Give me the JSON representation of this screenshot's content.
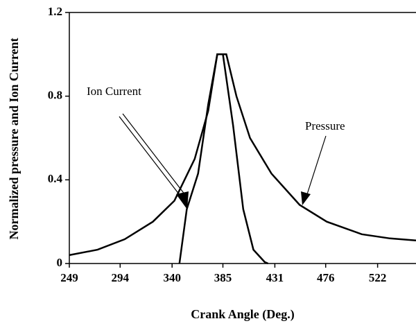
{
  "chart_data": {
    "type": "line",
    "x_label": "Crank Angle (Deg.)",
    "y_label": "Normalized pressure and Ion Current",
    "annotations": [
      "Ion Current",
      "Pressure"
    ],
    "xlim": [
      249,
      556
    ],
    "xticks": [
      249,
      294,
      340,
      385,
      431,
      476,
      522
    ],
    "ylim": [
      0,
      1.2
    ],
    "yticks": [
      0,
      0.4,
      0.8,
      1.2
    ],
    "series": [
      {
        "name": "Pressure",
        "color": "#000000",
        "x": [
          249,
          274,
          298,
          323,
          342,
          360,
          372,
          380,
          388,
          397,
          409,
          428,
          453,
          477,
          508,
          533,
          556
        ],
        "values": [
          0.04,
          0.066,
          0.116,
          0.2,
          0.3,
          0.5,
          0.73,
          1.0,
          1.0,
          0.8,
          0.6,
          0.43,
          0.28,
          0.2,
          0.14,
          0.12,
          0.11
        ]
      },
      {
        "name": "Ion Current",
        "color": "#000000",
        "x": [
          346.5,
          353,
          363,
          372,
          380,
          385,
          394,
          403,
          412,
          422,
          425
        ],
        "values": [
          0,
          0.26,
          0.43,
          0.76,
          1.0,
          1.0,
          0.66,
          0.26,
          0.066,
          0.007,
          0
        ]
      }
    ]
  }
}
